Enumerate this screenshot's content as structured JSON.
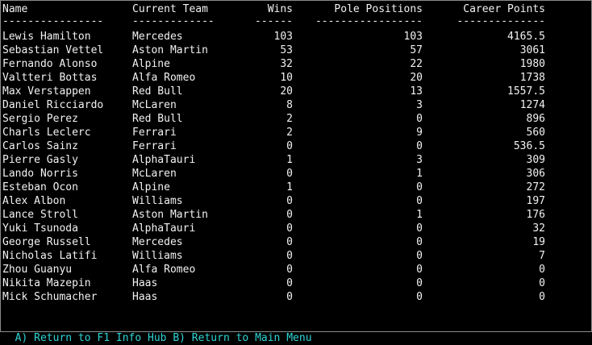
{
  "headers": {
    "name": "Name",
    "team": "Current Team",
    "wins": "Wins",
    "poles": "Pole Positions",
    "points": "Career Points"
  },
  "separators": {
    "name": "----------------",
    "team": "-------------",
    "wins": "------",
    "poles": "-----------------",
    "points": "--------------"
  },
  "drivers": [
    {
      "name": "Lewis Hamilton",
      "team": "Mercedes",
      "wins": "103",
      "poles": "103",
      "points": "4165.5"
    },
    {
      "name": "Sebastian Vettel",
      "team": "Aston Martin",
      "wins": "53",
      "poles": "57",
      "points": "3061"
    },
    {
      "name": "Fernando Alonso",
      "team": "Alpine",
      "wins": "32",
      "poles": "22",
      "points": "1980"
    },
    {
      "name": "Valtteri Bottas",
      "team": "Alfa Romeo",
      "wins": "10",
      "poles": "20",
      "points": "1738"
    },
    {
      "name": "Max Verstappen",
      "team": "Red Bull",
      "wins": "20",
      "poles": "13",
      "points": "1557.5"
    },
    {
      "name": "Daniel Ricciardo",
      "team": "McLaren",
      "wins": "8",
      "poles": "3",
      "points": "1274"
    },
    {
      "name": "Sergio Perez",
      "team": "Red Bull",
      "wins": "2",
      "poles": "0",
      "points": "896"
    },
    {
      "name": "Charls Leclerc",
      "team": "Ferrari",
      "wins": "2",
      "poles": "9",
      "points": "560"
    },
    {
      "name": "Carlos Sainz",
      "team": "Ferrari",
      "wins": "0",
      "poles": "0",
      "points": "536.5"
    },
    {
      "name": "Pierre Gasly",
      "team": "AlphaTauri",
      "wins": "1",
      "poles": "3",
      "points": "309"
    },
    {
      "name": "Lando Norris",
      "team": "McLaren",
      "wins": "0",
      "poles": "1",
      "points": "306"
    },
    {
      "name": "Esteban Ocon",
      "team": "Alpine",
      "wins": "1",
      "poles": "0",
      "points": "272"
    },
    {
      "name": "Alex Albon",
      "team": "Williams",
      "wins": "0",
      "poles": "0",
      "points": "197"
    },
    {
      "name": "Lance Stroll",
      "team": "Aston Martin",
      "wins": "0",
      "poles": "1",
      "points": "176"
    },
    {
      "name": "Yuki Tsunoda",
      "team": "AlphaTauri",
      "wins": "0",
      "poles": "0",
      "points": "32"
    },
    {
      "name": "George Russell",
      "team": "Mercedes",
      "wins": "0",
      "poles": "0",
      "points": "19"
    },
    {
      "name": "Nicholas Latifi",
      "team": "Williams",
      "wins": "0",
      "poles": "0",
      "points": "7"
    },
    {
      "name": "Zhou Guanyu",
      "team": "Alfa Romeo",
      "wins": "0",
      "poles": "0",
      "points": "0"
    },
    {
      "name": "Nikita Mazepin",
      "team": "Haas",
      "wins": "0",
      "poles": "0",
      "points": "0"
    },
    {
      "name": "Mick Schumacher",
      "team": "Haas",
      "wins": "0",
      "poles": "0",
      "points": "0"
    }
  ],
  "menu": {
    "option_a": "A) Return to F1 Info Hub",
    "option_b": "B) Return to Main Menu"
  },
  "colors": {
    "background": "#000000",
    "text": "#f2f2f2",
    "menu_text": "#2fd3d3"
  }
}
